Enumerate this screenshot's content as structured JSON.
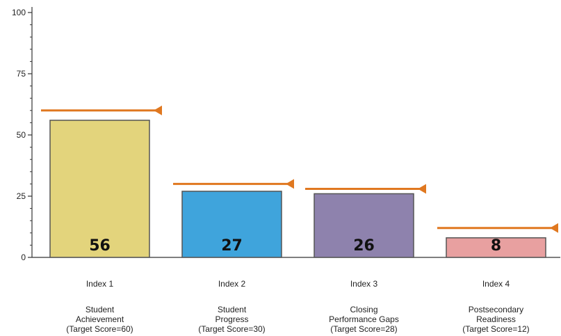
{
  "chart_data": {
    "type": "bar",
    "title": "",
    "xlabel": "",
    "ylabel": "",
    "ylim": [
      0,
      100
    ],
    "yticks": [
      0,
      25,
      50,
      75,
      100
    ],
    "grid": false,
    "categories": [
      [
        "Index 1",
        "",
        "Student",
        "Achievement",
        "(Target Score=60)"
      ],
      [
        "Index 2",
        "",
        "Student",
        "Progress",
        "(Target Score=30)"
      ],
      [
        "Index 3",
        "",
        "Closing",
        "Performance Gaps",
        "(Target Score=28)"
      ],
      [
        "Index 4",
        "",
        "Postsecondary",
        "Readiness",
        "(Target Score=12)"
      ]
    ],
    "values": [
      56,
      27,
      26,
      8
    ],
    "targets": [
      60,
      30,
      28,
      12
    ],
    "bar_colors": [
      "#e3d47c",
      "#3fa4dc",
      "#8e82ad",
      "#e8a0a0"
    ],
    "target_color": "#e07820",
    "axis_color": "#333333"
  }
}
